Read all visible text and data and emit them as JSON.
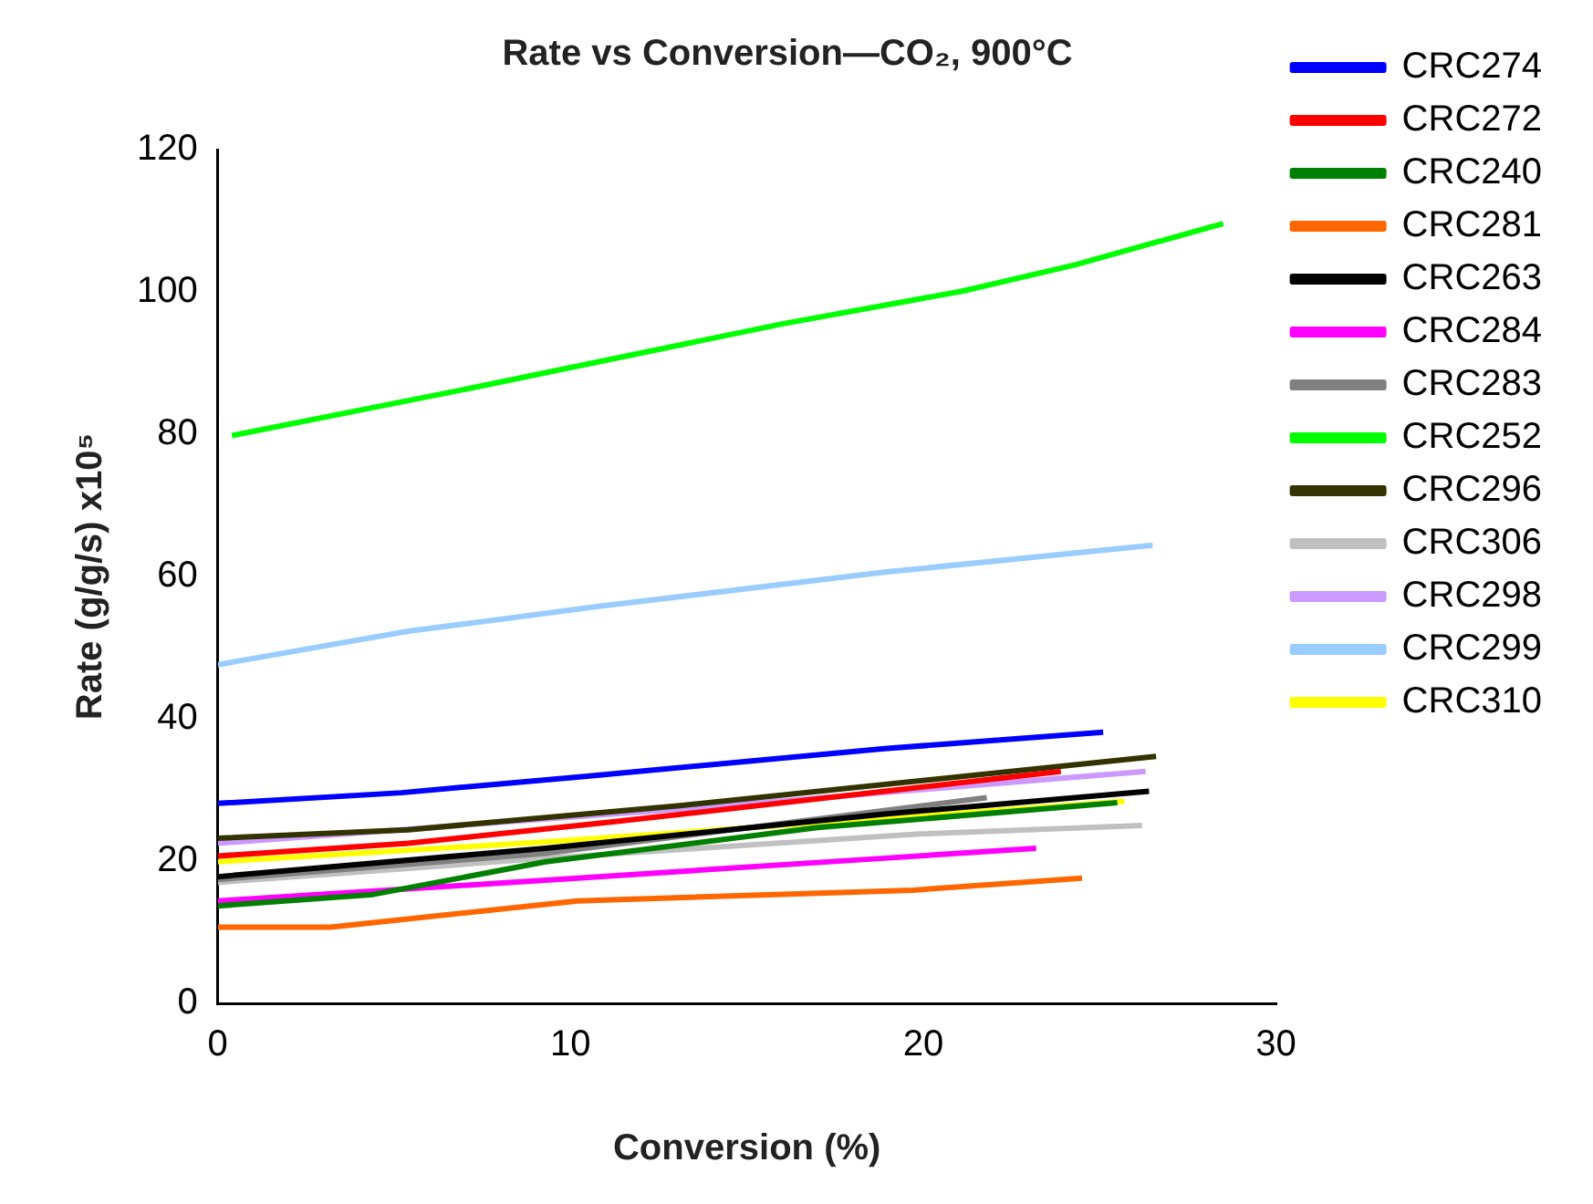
{
  "chart_data": {
    "type": "line",
    "title": "Rate vs Conversion—CO₂, 900°C",
    "xlabel": "Conversion (%)",
    "ylabel": "Rate (g/g/s) x10⁵",
    "xlim": [
      0,
      30
    ],
    "xticks": [
      0,
      10,
      20,
      30
    ],
    "ylim": [
      0,
      120
    ],
    "yticks": [
      0,
      20,
      40,
      60,
      80,
      100,
      120
    ],
    "grid": false,
    "legend": "right",
    "marker": "none",
    "line_style": "solid",
    "series": [
      {
        "name": "CRC274",
        "color": "#0000ff",
        "x": [
          0,
          5.2,
          10.4,
          18.9,
          25.1
        ],
        "values": [
          28.1,
          29.6,
          31.9,
          35.8,
          38.1
        ]
      },
      {
        "name": "CRC272",
        "color": "#ff0000",
        "x": [
          0,
          5.4,
          11.2,
          23.9
        ],
        "values": [
          20.7,
          22.5,
          25.5,
          32.6
        ]
      },
      {
        "name": "CRC240",
        "color": "#008000",
        "x": [
          0,
          4.4,
          9.3,
          17,
          25.5
        ],
        "values": [
          13.7,
          15.3,
          19.9,
          24.7,
          28.2
        ]
      },
      {
        "name": "CRC281",
        "color": "#ff6600",
        "x": [
          0,
          3.2,
          10.2,
          19.7,
          24.5
        ],
        "values": [
          10.7,
          10.7,
          14.4,
          15.9,
          17.6
        ]
      },
      {
        "name": "CRC263",
        "color": "#000000",
        "x": [
          0,
          9.3,
          18.9,
          26.4
        ],
        "values": [
          17.8,
          21.8,
          26.6,
          29.8
        ]
      },
      {
        "name": "CRC284",
        "color": "#ff00ff",
        "x": [
          0,
          10.2,
          18.9,
          23.2
        ],
        "values": [
          14.4,
          17.6,
          20.4,
          21.8
        ]
      },
      {
        "name": "CRC283",
        "color": "#808080",
        "x": [
          0,
          9.3,
          21.8
        ],
        "values": [
          17.4,
          21.1,
          28.9
        ]
      },
      {
        "name": "CRC252",
        "color": "#00ff00",
        "x": [
          0.4,
          7.3,
          16,
          21.1,
          24.3,
          28.5
        ],
        "values": [
          79.8,
          86.6,
          95.5,
          100.1,
          103.8,
          109.6
        ]
      },
      {
        "name": "CRC296",
        "color": "#333300",
        "x": [
          0,
          5.4,
          13.1,
          26.6
        ],
        "values": [
          23.2,
          24.4,
          27.8,
          34.7
        ]
      },
      {
        "name": "CRC306",
        "color": "#c0c0c0",
        "x": [
          0,
          9.3,
          19.9,
          26.2
        ],
        "values": [
          17,
          20.4,
          23.8,
          25
        ]
      },
      {
        "name": "CRC298",
        "color": "#cc99ff",
        "x": [
          0,
          13.1,
          26.3
        ],
        "values": [
          22.5,
          27.3,
          32.6
        ]
      },
      {
        "name": "CRC299",
        "color": "#99ccff",
        "x": [
          0,
          5.4,
          10.8,
          18.9,
          26.5
        ],
        "values": [
          47.6,
          52.3,
          55.8,
          60.6,
          64.4
        ]
      },
      {
        "name": "CRC310",
        "color": "#ffff00",
        "x": [
          0,
          9.3,
          18.9,
          25.7
        ],
        "values": [
          19.9,
          22.7,
          26,
          28.4
        ]
      }
    ]
  }
}
